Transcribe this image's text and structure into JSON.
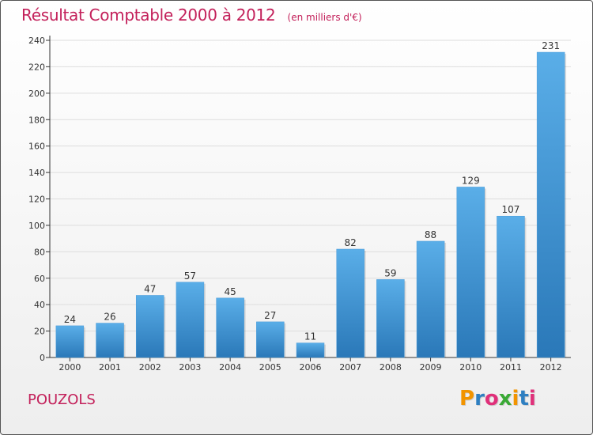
{
  "chart_data": {
    "type": "bar",
    "title": "Résultat Comptable 2000 à 2012",
    "subtitle": "(en milliers d'€)",
    "categories": [
      "2000",
      "2001",
      "2002",
      "2003",
      "2004",
      "2005",
      "2006",
      "2007",
      "2008",
      "2009",
      "2010",
      "2011",
      "2012"
    ],
    "values": [
      24,
      26,
      47,
      57,
      45,
      27,
      11,
      82,
      59,
      88,
      129,
      107,
      231
    ],
    "ylim": [
      0,
      240
    ],
    "yticks": [
      0,
      20,
      40,
      60,
      80,
      100,
      120,
      140,
      160,
      180,
      200,
      220,
      240
    ],
    "grid": true,
    "bar_color_top": "#5aaee8",
    "bar_color_bottom": "#2a78b8"
  },
  "commune": "POUZOLS",
  "logo": {
    "text": "Proxiti",
    "letters": [
      "P",
      "r",
      "o",
      "x",
      "i",
      "t",
      "i"
    ],
    "colors": [
      "#f29400",
      "#2e7fc1",
      "#e0307a",
      "#3aa935",
      "#f29400",
      "#2e7fc1",
      "#e0307a"
    ]
  }
}
